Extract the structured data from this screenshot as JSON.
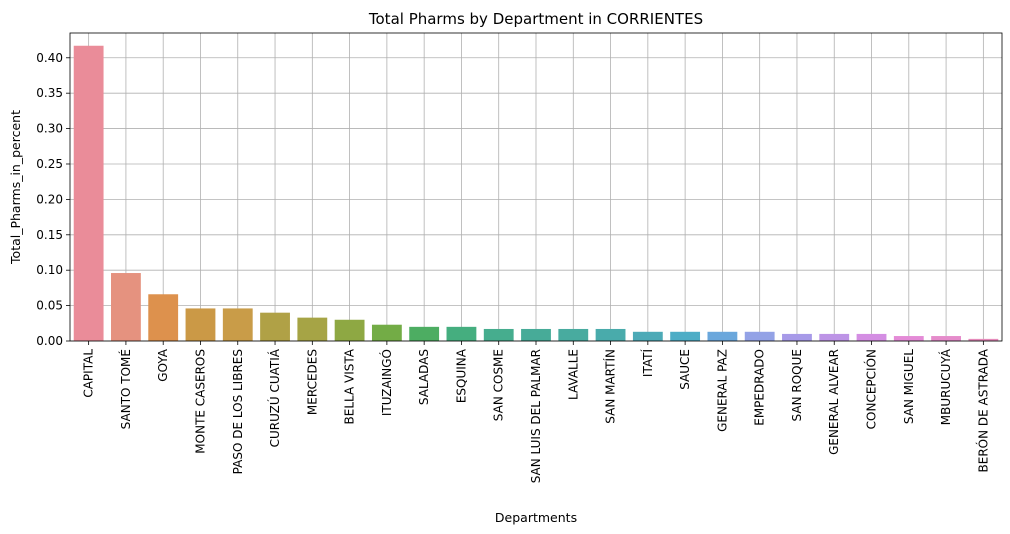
{
  "chart_data": {
    "type": "bar",
    "title": "Total Pharms by Department in CORRIENTES",
    "xlabel": "Departments",
    "ylabel": "Total_Pharms_in_percent",
    "ylim": [
      0,
      0.435
    ],
    "yticks": [
      "0.00",
      "0.05",
      "0.10",
      "0.15",
      "0.20",
      "0.25",
      "0.30",
      "0.35",
      "0.40"
    ],
    "grid": true,
    "categories": [
      "CAPITAL",
      "SANTO TOMÉ",
      "GOYA",
      "MONTE CASEROS",
      "PASO DE LOS LIBRES",
      "CURUZÚ CUATIÁ",
      "MERCEDES",
      "BELLA VISTA",
      "ITUZAINGÓ",
      "SALADAS",
      "ESQUINA",
      "SAN COSME",
      "SAN LUIS DEL PALMAR",
      "LAVALLE",
      "SAN MARTÍN",
      "ITATÍ",
      "SAUCE",
      "GENERAL PAZ",
      "EMPEDRADO",
      "SAN ROQUE",
      "GENERAL ALVEAR",
      "CONCEPCIÓN",
      "SAN MIGUEL",
      "MBURUCUYÁ",
      "BERÓN DE ASTRADA"
    ],
    "values": [
      0.417,
      0.096,
      0.066,
      0.046,
      0.046,
      0.04,
      0.033,
      0.03,
      0.023,
      0.02,
      0.02,
      0.017,
      0.017,
      0.017,
      0.017,
      0.013,
      0.013,
      0.013,
      0.013,
      0.01,
      0.01,
      0.01,
      0.007,
      0.007,
      0.003
    ],
    "colors": [
      "#ea8c99",
      "#e5927f",
      "#dd914d",
      "#cb9946",
      "#c99c48",
      "#b0a146",
      "#a6a445",
      "#8ea843",
      "#73ac46",
      "#4dad62",
      "#45ae7f",
      "#46ad8e",
      "#47ab98",
      "#48ab9f",
      "#49abab",
      "#4caab7",
      "#4dadc6",
      "#6aa7dc",
      "#93a2e6",
      "#a79ae8",
      "#bd94e6",
      "#d48ee3",
      "#e48bd7",
      "#e58ccb",
      "#e68bbb"
    ]
  }
}
